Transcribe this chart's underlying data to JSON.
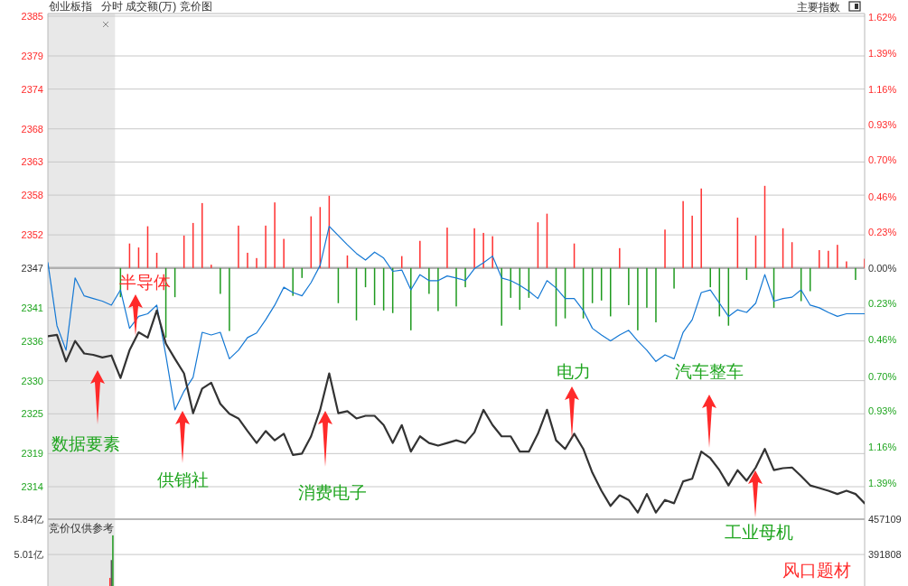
{
  "chart_data": [
    {
      "type": "line",
      "title": "创业板指",
      "subtitle": "分时 成交额(万) 竞价图",
      "categories": [
        null,
        null,
        null,
        null,
        null,
        null,
        null,
        null,
        null,
        null,
        null,
        null,
        null,
        null,
        null,
        null,
        null,
        null,
        null,
        null,
        null,
        null,
        null,
        null,
        null,
        null,
        null,
        null,
        null,
        null,
        null,
        null,
        null,
        null,
        null,
        null,
        null,
        null,
        null,
        null,
        null,
        null,
        null,
        null,
        null,
        null,
        null,
        null,
        null,
        null,
        null,
        null,
        null,
        null,
        null,
        null,
        null,
        null,
        null,
        null,
        null,
        null,
        null,
        null,
        null,
        null,
        null,
        null,
        null,
        null,
        null,
        null,
        null,
        null,
        null,
        null,
        null,
        null,
        null,
        null,
        null,
        null,
        null,
        null,
        null,
        null,
        null,
        null,
        null,
        null,
        null
      ],
      "series": [
        {
          "type": "bar",
          "base": [
            null,
            null,
            null,
            null,
            null,
            null,
            null,
            null,
            2347,
            2347,
            2347,
            2347,
            2347,
            2347,
            2347,
            2347,
            2347,
            2347,
            2347,
            2347,
            2347,
            2347,
            2347,
            2347,
            2347,
            2347,
            2347,
            2347,
            2347,
            2347,
            2347,
            2347,
            2347,
            2347,
            2347,
            2347,
            2347,
            2347,
            2347,
            2347,
            2347,
            2347,
            2347,
            2347,
            2347,
            2347,
            2347,
            2347,
            2347,
            2347,
            2347,
            2347,
            2347,
            2347,
            2347,
            2347,
            2347,
            2347,
            2347,
            2347,
            2347,
            2347,
            2347,
            2347,
            2347,
            2347,
            2347,
            2347,
            2347,
            2347,
            2347,
            2347,
            2347,
            2347,
            2347,
            2347,
            2347,
            2347,
            2347,
            2347,
            2347,
            2347,
            2347,
            2347,
            2347,
            2347,
            2347,
            2347,
            2347,
            2347,
            2347
          ],
          "values": [
            null,
            null,
            null,
            null,
            null,
            null,
            null,
            null,
            -4.4,
            3.7,
            3.1,
            6.3,
            2.3,
            -10.5,
            -4.4,
            4.9,
            6.8,
            9.8,
            0.5,
            -3.9,
            -9.5,
            6.4,
            2.3,
            1.5,
            6.4,
            9.9,
            4.4,
            -4.2,
            -1.5,
            7.8,
            9.2,
            10.9,
            -5.3,
            1.9,
            -7.9,
            -2.9,
            -5.6,
            -6.4,
            -6.8,
            1.8,
            -9.4,
            4.1,
            -3.9,
            -6.5,
            6.1,
            -5.8,
            -2.9,
            6.0,
            5.3,
            4.8,
            -8.7,
            -4.5,
            -6.3,
            -4.5,
            6.9,
            8.2,
            -8.8,
            -7.6,
            3.7,
            -7.6,
            -5.3,
            -4.9,
            -7.3,
            3.0,
            -5.6,
            -9.4,
            -6.0,
            -8.2,
            5.8,
            -3.1,
            10.1,
            7.9,
            12.0,
            -2.9,
            -7.3,
            -8.7,
            7.6,
            -1.8,
            4.9,
            12.4,
            -6.0,
            6.0,
            3.9,
            -5.0,
            -3.5,
            2.7,
            2.6,
            3.5,
            1.0,
            -1.8,
            1.4
          ],
          "colors": [
            null,
            null,
            null,
            null,
            null,
            null,
            null,
            null,
            "#1f9a1f",
            "#ff3030",
            "#ff3030",
            "#ff3030",
            "#ff3030",
            "#1f9a1f",
            "#1f9a1f",
            "#ff3030",
            "#ff3030",
            "#ff3030",
            "#ff3030",
            "#1f9a1f",
            "#1f9a1f",
            "#ff3030",
            "#ff3030",
            "#ff3030",
            "#ff3030",
            "#ff3030",
            "#ff3030",
            "#1f9a1f",
            "#1f9a1f",
            "#ff3030",
            "#ff3030",
            "#ff3030",
            "#1f9a1f",
            "#ff3030",
            "#1f9a1f",
            "#1f9a1f",
            "#1f9a1f",
            "#1f9a1f",
            "#1f9a1f",
            "#ff3030",
            "#1f9a1f",
            "#ff3030",
            "#1f9a1f",
            "#1f9a1f",
            "#ff3030",
            "#1f9a1f",
            "#1f9a1f",
            "#ff3030",
            "#ff3030",
            "#ff3030",
            "#1f9a1f",
            "#1f9a1f",
            "#1f9a1f",
            "#1f9a1f",
            "#ff3030",
            "#ff3030",
            "#1f9a1f",
            "#1f9a1f",
            "#ff3030",
            "#1f9a1f",
            "#1f9a1f",
            "#1f9a1f",
            "#1f9a1f",
            "#ff3030",
            "#1f9a1f",
            "#1f9a1f",
            "#1f9a1f",
            "#1f9a1f",
            "#ff3030",
            "#1f9a1f",
            "#ff3030",
            "#ff3030",
            "#ff3030",
            "#1f9a1f",
            "#1f9a1f",
            "#1f9a1f",
            "#ff3030",
            "#1f9a1f",
            "#ff3030",
            "#ff3030",
            "#1f9a1f",
            "#ff3030",
            "#ff3030",
            "#1f9a1f",
            "#1f9a1f",
            "#ff3030",
            "#ff3030",
            "#ff3030",
            "#ff3030",
            "#1f9a1f",
            "#ff3030"
          ]
        },
        {
          "color": "#1478d4",
          "values": [
            2347.8,
            2338.3,
            2334.6,
            2345.5,
            2342.8,
            2342.4,
            2342.0,
            2341.4,
            2343.7,
            2337.9,
            2339.7,
            2340.1,
            2341.4,
            2333.8,
            2325.6,
            2328.4,
            2330.5,
            2337.3,
            2336.9,
            2337.3,
            2333.3,
            2334.6,
            2336.5,
            2337.2,
            2339.2,
            2341.4,
            2344.1,
            2343.3,
            2342.8,
            2344.8,
            2347.4,
            2353.3,
            2351.9,
            2350.5,
            2349.2,
            2348.2,
            2349.4,
            2348.5,
            2346.5,
            2346.7,
            2343.7,
            2346.0,
            2345.1,
            2345.1,
            2345.8,
            2345.5,
            2345.1,
            2346.9,
            2347.8,
            2348.8,
            2345.5,
            2345.1,
            2344.4,
            2343.5,
            2342.4,
            2345.1,
            2344.0,
            2342.4,
            2342.4,
            2340.6,
            2337.9,
            2336.9,
            2336.0,
            2336.9,
            2337.6,
            2336.0,
            2334.6,
            2332.9,
            2333.9,
            2333.3,
            2337.3,
            2339.2,
            2343.3,
            2343.7,
            2341.7,
            2339.7,
            2340.7,
            2340.3,
            2341.7,
            2346.0,
            2342.0,
            2342.4,
            2342.6,
            2343.7,
            2341.4,
            2341.0,
            2340.3,
            2339.7,
            2340.1,
            2340.1,
            2340.1
          ]
        },
        {
          "color": "#333333",
          "values": [
            2336.7,
            2336.9,
            2332.9,
            2336.0,
            2334.1,
            2333.9,
            2333.5,
            2333.8,
            2330.4,
            2334.6,
            2337.3,
            2336.5,
            2340.6,
            2335.6,
            2333.3,
            2331.1,
            2325.1,
            2328.8,
            2329.7,
            2326.5,
            2325.0,
            2324.3,
            2322.4,
            2320.6,
            2322.4,
            2321.0,
            2322.0,
            2318.8,
            2319.0,
            2321.6,
            2325.6,
            2331.1,
            2325.1,
            2325.4,
            2324.3,
            2324.7,
            2324.7,
            2323.3,
            2320.6,
            2323.3,
            2319.3,
            2321.6,
            2320.6,
            2320.2,
            2320.6,
            2321.0,
            2320.6,
            2322.2,
            2325.6,
            2323.3,
            2321.6,
            2321.6,
            2319.3,
            2319.3,
            2322.0,
            2325.6,
            2321.0,
            2319.7,
            2322.0,
            2319.7,
            2316.1,
            2313.4,
            2311.1,
            2312.7,
            2312.0,
            2310.1,
            2312.9,
            2310.1,
            2312.0,
            2311.5,
            2314.8,
            2315.2,
            2319.3,
            2318.3,
            2316.5,
            2314.2,
            2316.5,
            2314.9,
            2316.9,
            2319.7,
            2316.5,
            2316.8,
            2316.9,
            2315.6,
            2314.2,
            2313.8,
            2313.4,
            2312.9,
            2313.4,
            2312.9,
            2311.5
          ]
        }
      ],
      "ylim": [
        2309.1,
        2385.4
      ],
      "yticks": [
        2314,
        2319,
        2325,
        2330,
        2336,
        2341,
        2347,
        2352,
        2358,
        2363,
        2368,
        2374,
        2379,
        2385
      ],
      "y2lim": [
        -1.624,
        1.646
      ],
      "y2ticks": [
        {
          "value": -1.388,
          "label": "1.39%"
        },
        {
          "value": -1.157,
          "label": "1.16%"
        },
        {
          "value": -0.926,
          "label": "0.93%"
        },
        {
          "value": -0.7,
          "label": "0.70%"
        },
        {
          "value": -0.463,
          "label": "0.46%"
        },
        {
          "value": -0.231,
          "label": "0.23%"
        },
        {
          "value": 0,
          "label": "0.00%"
        },
        {
          "value": 0.231,
          "label": "0.23%"
        },
        {
          "value": 0.463,
          "label": "0.46%"
        },
        {
          "value": 0.7,
          "label": "0.70%"
        },
        {
          "value": 0.926,
          "label": "0.93%"
        },
        {
          "value": 1.157,
          "label": "1.16%"
        },
        {
          "value": 1.388,
          "label": "1.39%"
        },
        {
          "value": 1.62,
          "label": "1.62%"
        }
      ],
      "ref_lines": [
        {
          "axis": "y",
          "value": 2347,
          "color": "#b0b0b0"
        }
      ],
      "grid": "y",
      "annotations": [
        "半导体",
        "数据要素",
        "供销社",
        "消费电子",
        "电力",
        "汽车整车",
        "工业母机",
        "风口题材",
        "主要指数"
      ]
    },
    {
      "type": "bar",
      "title": "竞价仅供参考",
      "categories": [
        null,
        null,
        null,
        null,
        null,
        null,
        null,
        null,
        null,
        null,
        null,
        null,
        null,
        null,
        null,
        null,
        null,
        null,
        null,
        null,
        null,
        null,
        null,
        null,
        null,
        null,
        null,
        null,
        null,
        null,
        null,
        null,
        null,
        null,
        null,
        null,
        null,
        null,
        null,
        null,
        null,
        null,
        null,
        null,
        null,
        null,
        null,
        null,
        null,
        null,
        null,
        null,
        null,
        null,
        null,
        null,
        null,
        null,
        null,
        null,
        null,
        null,
        null,
        null,
        null,
        null,
        null,
        null,
        null,
        null,
        null,
        null,
        null,
        null,
        null,
        null,
        null,
        null,
        null,
        null,
        null,
        null,
        null,
        null,
        null,
        null,
        null,
        null,
        null,
        null,
        null
      ],
      "series": [
        {
          "color": "#ff3030",
          "values": [
            null,
            null,
            null,
            null,
            null,
            null,
            null,
            4.46,
            null,
            null,
            null,
            null,
            null,
            null,
            null,
            null,
            null,
            null,
            null,
            null,
            null,
            null,
            null,
            null,
            null,
            null,
            null,
            null,
            null,
            null,
            null,
            null,
            null,
            null,
            null,
            null,
            null,
            null,
            null,
            null,
            null,
            null,
            null,
            null,
            null,
            null,
            null,
            null,
            null,
            null,
            null,
            null,
            null,
            null,
            null,
            null,
            null,
            null,
            null,
            null,
            null,
            null,
            null,
            null,
            null,
            null,
            null,
            null,
            null,
            null,
            null,
            null,
            null,
            null,
            null,
            null,
            null,
            null,
            null,
            null,
            null,
            null,
            null,
            null,
            null,
            null,
            null,
            null,
            null,
            null,
            null
          ]
        },
        {
          "color": "#555555",
          "values": [
            null,
            null,
            null,
            null,
            null,
            null,
            null,
            4.88,
            null,
            null,
            null,
            null,
            null,
            null,
            null,
            null,
            null,
            null,
            null,
            null,
            null,
            null,
            null,
            null,
            null,
            null,
            null,
            null,
            null,
            null,
            null,
            null,
            null,
            null,
            null,
            null,
            null,
            null,
            null,
            null,
            null,
            null,
            null,
            null,
            null,
            null,
            null,
            null,
            null,
            null,
            null,
            null,
            null,
            null,
            null,
            null,
            null,
            null,
            null,
            null,
            null,
            null,
            null,
            null,
            null,
            null,
            null,
            null,
            null,
            null,
            null,
            null,
            null,
            null,
            null,
            null,
            null,
            null,
            null,
            null,
            null,
            null,
            null,
            null,
            null,
            null,
            null,
            null,
            null,
            null,
            null
          ]
        },
        {
          "color": "#1f9a1f",
          "values": [
            null,
            null,
            null,
            null,
            null,
            null,
            null,
            5.46,
            null,
            null,
            null,
            null,
            null,
            null,
            null,
            null,
            null,
            null,
            null,
            null,
            null,
            null,
            null,
            null,
            null,
            null,
            null,
            null,
            null,
            null,
            null,
            null,
            null,
            null,
            null,
            null,
            null,
            null,
            null,
            null,
            null,
            null,
            null,
            null,
            null,
            null,
            null,
            null,
            null,
            null,
            null,
            null,
            null,
            null,
            null,
            null,
            null,
            null,
            null,
            null,
            null,
            null,
            null,
            null,
            null,
            null,
            null,
            null,
            null,
            null,
            null,
            null,
            null,
            null,
            null,
            null,
            null,
            null,
            null,
            null,
            null,
            null,
            null,
            null,
            null,
            null,
            null,
            null,
            null,
            null,
            null
          ]
        }
      ],
      "ylim": [
        4.27,
        5.84
      ],
      "yticks": [
        {
          "value": 5.84,
          "label": "5.84亿"
        },
        {
          "value": 5.01,
          "label": "5.01亿"
        }
      ],
      "y2lim": [
        333205,
        457109
      ],
      "y2ticks": [
        457109,
        391808
      ],
      "grid": "y"
    }
  ]
}
